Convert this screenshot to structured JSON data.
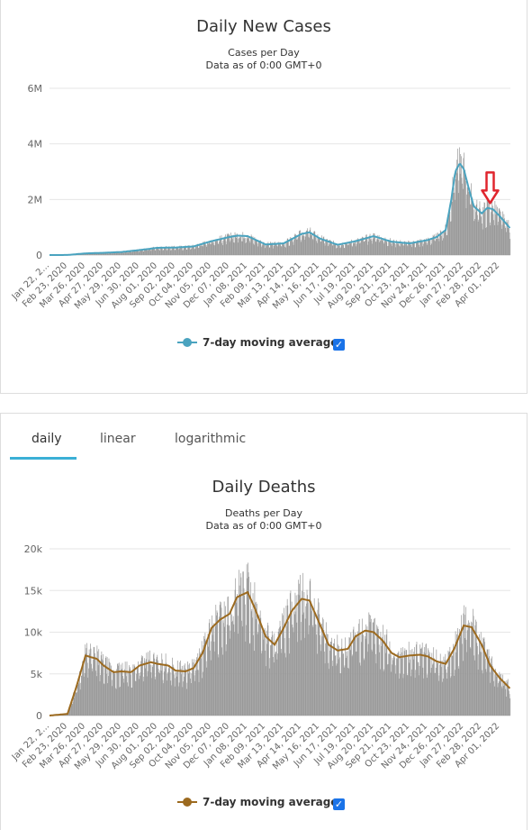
{
  "cases_chart": {
    "title": "Daily New Cases",
    "subtitle_line1": "Cases per Day",
    "subtitle_line2": "Data as of 0:00 GMT+0",
    "legend_label": "7-day moving average",
    "line_color": "#4aa3bf",
    "bar_color": "#999999",
    "annotation": "red-down-arrow",
    "annotation_color": "#e0262e"
  },
  "deaths_chart": {
    "title": "Daily Deaths",
    "subtitle_line1": "Deaths per Day",
    "subtitle_line2": "Data as of 0:00 GMT+0",
    "legend_label": "7-day moving average",
    "line_color": "#9c6a1f",
    "bar_color": "#999999"
  },
  "tabs": [
    {
      "label": "daily",
      "active": true
    },
    {
      "label": "linear",
      "active": false
    },
    {
      "label": "logarithmic",
      "active": false
    }
  ],
  "accent_color": "#3bb0d6",
  "chart_data": [
    {
      "type": "bar",
      "title": "Daily New Cases",
      "subtitle": "Cases per Day",
      "ylim": [
        0,
        6000000
      ],
      "y_ticks": [
        "0",
        "2M",
        "4M",
        "6M"
      ],
      "y_tick_values": [
        0,
        2000000,
        4000000,
        6000000
      ],
      "x_tick_labels": [
        "Jan 22, 2020",
        "Feb 23, 2020",
        "Mar 26, 2020",
        "Apr 27, 2020",
        "May 29, 2020",
        "Jun 30, 2020",
        "Aug 01, 2020",
        "Sep 02, 2020",
        "Oct 04, 2020",
        "Nov 05, 2020",
        "Dec 07, 2020",
        "Jan 08, 2021",
        "Feb 09, 2021",
        "Mar 13, 2021",
        "Apr 14, 2021",
        "May 16, 2021",
        "Jun 17, 2021",
        "Jul 19, 2021",
        "Aug 20, 2021",
        "Sep 21, 2021",
        "Oct 23, 2021",
        "Nov 24, 2021",
        "Dec 26, 2021",
        "Jan 27, 2022",
        "Feb 28, 2022",
        "Apr 01, 2022"
      ],
      "x_tick_displayed": [
        "Jan 22, 2...",
        "Feb 23, 2020",
        "Mar 26, 2020",
        "Apr 27, 2020",
        "May 29, 2020",
        "Jun 30, 2020",
        "Aug 01, 2020",
        "Sep 02, 2020",
        "Oct 04, 2020",
        "Nov 05, 2020",
        "Dec 07, 2020",
        "Jan 08, 2021",
        "Feb 09, 2021",
        "Mar 13, 2021",
        "Apr 14, 2021",
        "May 16, 2021",
        "Jun 17, 2021",
        "Jul 19, 2021",
        "Aug 20, 2021",
        "Sep 21, 2021",
        "Oct 23, 2021",
        "Nov 24, 2021",
        "Dec 26, 2021",
        "Jan 27, 2022",
        "Feb 28, 2022",
        "Apr 01, 2022"
      ],
      "x_range": [
        "Jan 22, 2020",
        "Apr 20, 2022"
      ],
      "grid": true,
      "legend": "bottom-center",
      "series": [
        {
          "name": "7-day moving average",
          "type": "line",
          "x": [
            "Jan 22, 2020",
            "Feb 23, 2020",
            "Mar 26, 2020",
            "Apr 27, 2020",
            "May 29, 2020",
            "Jun 30, 2020",
            "Aug 01, 2020",
            "Sep 02, 2020",
            "Oct 04, 2020",
            "Nov 05, 2020",
            "Dec 07, 2020",
            "Dec 22, 2020",
            "Jan 08, 2021",
            "Feb 09, 2021",
            "Mar 13, 2021",
            "Apr 14, 2021",
            "Apr 28, 2021",
            "May 16, 2021",
            "Jun 17, 2021",
            "Jul 19, 2021",
            "Aug 20, 2021",
            "Sep 21, 2021",
            "Oct 23, 2021",
            "Nov 24, 2021",
            "Dec 10, 2021",
            "Dec 26, 2021",
            "Jan 05, 2022",
            "Jan 12, 2022",
            "Jan 20, 2022",
            "Jan 27, 2022",
            "Feb 05, 2022",
            "Feb 14, 2022",
            "Feb 28, 2022",
            "Mar 10, 2022",
            "Mar 20, 2022",
            "Apr 01, 2022",
            "Apr 20, 2022"
          ],
          "values": [
            0,
            2000,
            60000,
            80000,
            110000,
            180000,
            260000,
            270000,
            310000,
            500000,
            650000,
            700000,
            680000,
            380000,
            420000,
            760000,
            820000,
            600000,
            370000,
            500000,
            680000,
            480000,
            420000,
            540000,
            650000,
            900000,
            2000000,
            3000000,
            3300000,
            3100000,
            2400000,
            1750000,
            1500000,
            1700000,
            1650000,
            1400000,
            950000
          ]
        },
        {
          "name": "Daily",
          "type": "bar",
          "values_note": "daily bars follow the moving average with scatter",
          "values_reference": "moving average"
        }
      ]
    },
    {
      "type": "bar",
      "title": "Daily Deaths",
      "subtitle": "Deaths per Day",
      "ylim": [
        0,
        20000
      ],
      "y_ticks": [
        "0",
        "5k",
        "10k",
        "15k",
        "20k"
      ],
      "y_tick_values": [
        0,
        5000,
        10000,
        15000,
        20000
      ],
      "x_tick_labels": [
        "Jan 22, 2020",
        "Feb 23, 2020",
        "Mar 26, 2020",
        "Apr 27, 2020",
        "May 29, 2020",
        "Jun 30, 2020",
        "Aug 01, 2020",
        "Sep 02, 2020",
        "Oct 04, 2020",
        "Nov 05, 2020",
        "Dec 07, 2020",
        "Jan 08, 2021",
        "Feb 09, 2021",
        "Mar 13, 2021",
        "Apr 14, 2021",
        "May 16, 2021",
        "Jun 17, 2021",
        "Jul 19, 2021",
        "Aug 20, 2021",
        "Sep 21, 2021",
        "Oct 23, 2021",
        "Nov 24, 2021",
        "Dec 26, 2021",
        "Jan 27, 2022",
        "Feb 28, 2022",
        "Apr 01, 2022"
      ],
      "x_tick_displayed": [
        "Jan 22, 2...",
        "Feb 23, 2020",
        "Mar 26, 2020",
        "Apr 27, 2020",
        "May 29, 2020",
        "Jun 30, 2020",
        "Aug 01, 2020",
        "Sep 02, 2020",
        "Oct 04, 2020",
        "Nov 05, 2020",
        "Dec 07, 2020",
        "Jan 08, 2021",
        "Feb 09, 2021",
        "Mar 13, 2021",
        "Apr 14, 2021",
        "May 16, 2021",
        "Jun 17, 2021",
        "Jul 19, 2021",
        "Aug 20, 2021",
        "Sep 21, 2021",
        "Oct 23, 2021",
        "Nov 24, 2021",
        "Dec 26, 2021",
        "Jan 27, 2022",
        "Feb 28, 2022",
        "Apr 01, 2022"
      ],
      "x_range": [
        "Jan 22, 2020",
        "Apr 20, 2022"
      ],
      "grid": true,
      "legend": "bottom-center",
      "series": [
        {
          "name": "7-day moving average",
          "type": "line",
          "x": [
            "Jan 22, 2020",
            "Feb 23, 2020",
            "Mar 10, 2020",
            "Mar 26, 2020",
            "Apr 15, 2020",
            "Apr 27, 2020",
            "May 15, 2020",
            "May 29, 2020",
            "Jun 15, 2020",
            "Jun 30, 2020",
            "Jul 20, 2020",
            "Aug 01, 2020",
            "Aug 20, 2020",
            "Sep 02, 2020",
            "Sep 20, 2020",
            "Oct 04, 2020",
            "Oct 20, 2020",
            "Nov 05, 2020",
            "Nov 20, 2020",
            "Dec 07, 2020",
            "Dec 20, 2020",
            "Jan 08, 2021",
            "Jan 20, 2021",
            "Feb 09, 2021",
            "Feb 25, 2021",
            "Mar 13, 2021",
            "Mar 28, 2021",
            "Apr 14, 2021",
            "Apr 28, 2021",
            "May 16, 2021",
            "Jun 01, 2021",
            "Jun 17, 2021",
            "Jul 05, 2021",
            "Jul 19, 2021",
            "Aug 05, 2021",
            "Aug 20, 2021",
            "Sep 05, 2021",
            "Sep 21, 2021",
            "Oct 05, 2021",
            "Oct 23, 2021",
            "Nov 10, 2021",
            "Nov 24, 2021",
            "Dec 10, 2021",
            "Dec 26, 2021",
            "Jan 10, 2022",
            "Jan 27, 2022",
            "Feb 10, 2022",
            "Feb 28, 2022",
            "Mar 15, 2022",
            "Apr 01, 2022",
            "Apr 20, 2022"
          ],
          "values": [
            0,
            200,
            3500,
            7200,
            6800,
            6000,
            5200,
            5300,
            5200,
            6000,
            6400,
            6200,
            6000,
            5400,
            5300,
            5700,
            7500,
            10500,
            11500,
            12200,
            14200,
            14800,
            13000,
            9500,
            8500,
            10500,
            12600,
            14000,
            13800,
            11000,
            8500,
            7800,
            8000,
            9500,
            10200,
            10000,
            9000,
            7500,
            7000,
            7200,
            7300,
            7100,
            6500,
            6200,
            8000,
            10800,
            10600,
            8500,
            6000,
            4500,
            3200
          ]
        },
        {
          "name": "Daily",
          "type": "bar",
          "values_note": "daily bars follow the moving average with scatter",
          "values_reference": "moving average"
        }
      ]
    }
  ]
}
